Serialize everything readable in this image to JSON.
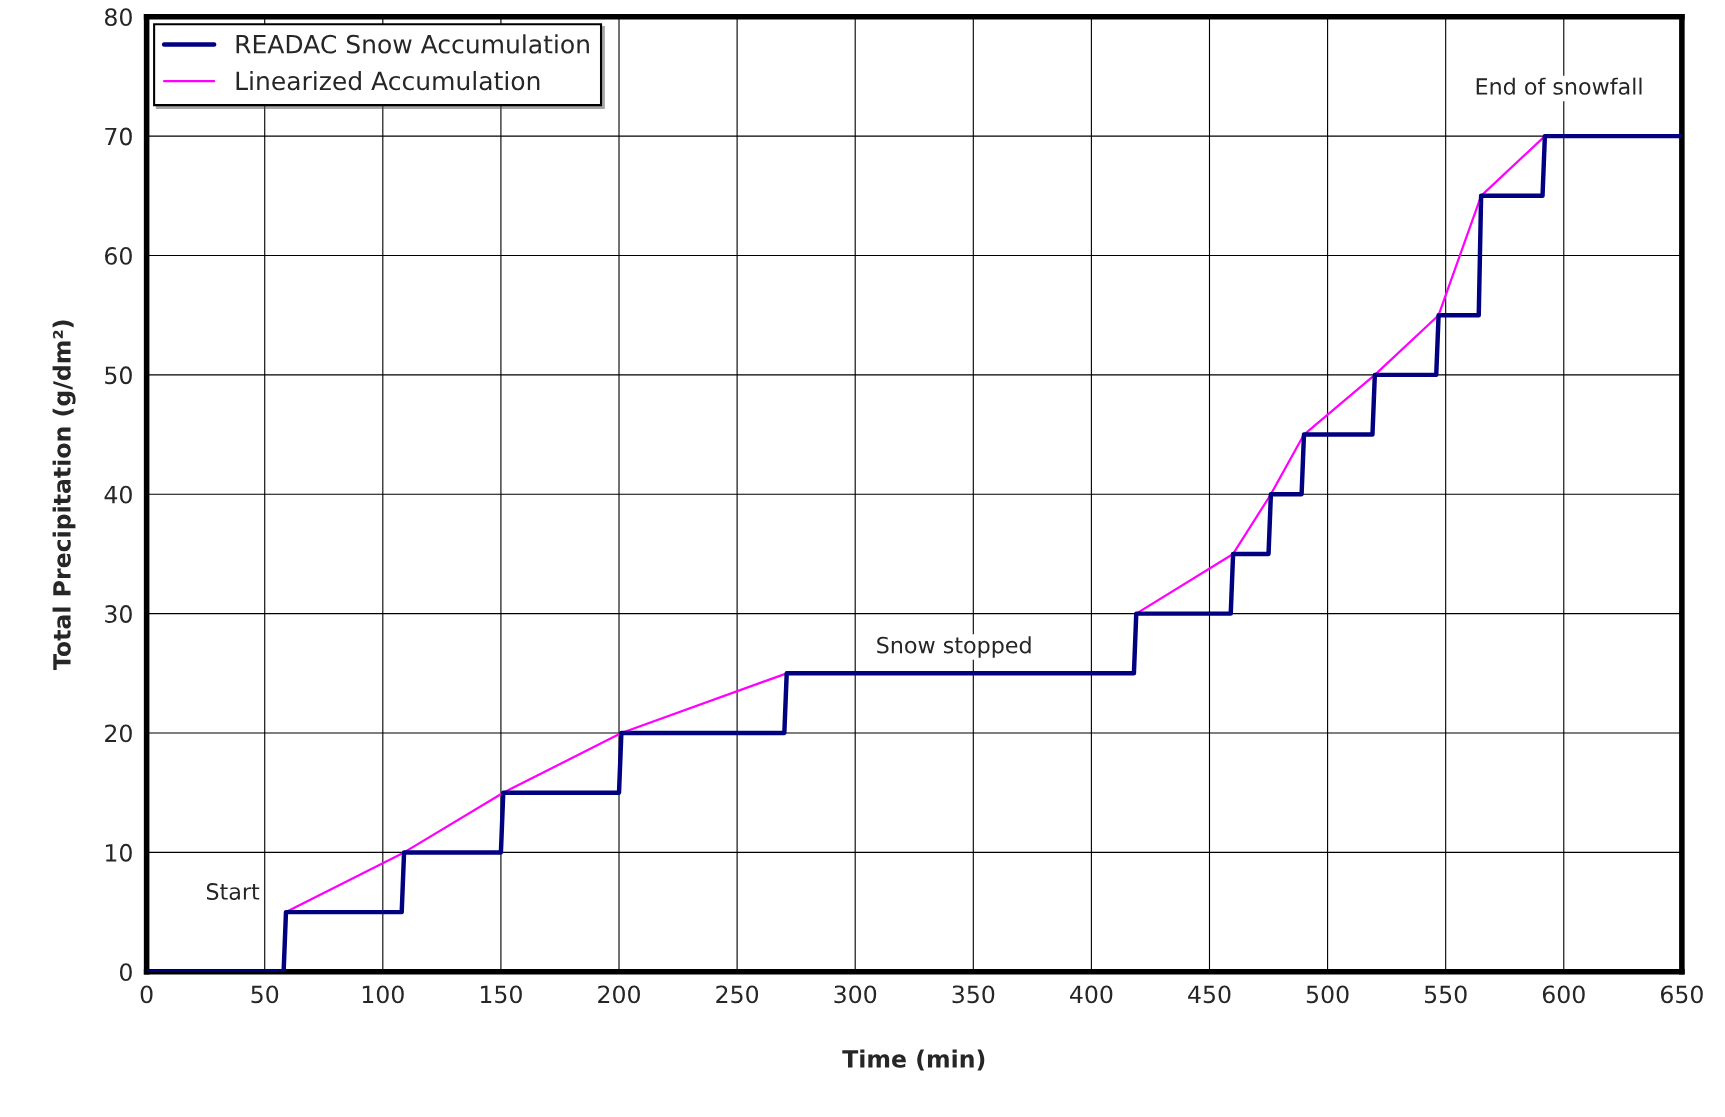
{
  "chart_data": {
    "type": "line",
    "xlabel": "Time (min)",
    "ylabel": "Total Precipitation (g/dm²)",
    "xlim": [
      0,
      650
    ],
    "xticks": [
      0,
      50,
      100,
      150,
      200,
      250,
      300,
      350,
      400,
      450,
      500,
      550,
      600,
      650
    ],
    "ylim": [
      0,
      80
    ],
    "yticks": [
      0,
      10,
      20,
      30,
      40,
      50,
      60,
      70,
      80
    ],
    "grid": true,
    "legend": "top left",
    "series": [
      {
        "name": "READAC Snow Accumulation",
        "color": "#000080",
        "x": [
          0,
          58,
          59,
          108,
          109,
          150,
          151,
          200,
          201,
          270,
          271,
          418,
          419,
          459,
          460,
          475,
          476,
          489,
          490,
          519,
          520,
          546,
          547,
          564,
          565,
          591,
          592,
          650
        ],
        "values": [
          0,
          0,
          5,
          5,
          10,
          10,
          15,
          15,
          20,
          20,
          25,
          25,
          30,
          30,
          35,
          35,
          40,
          40,
          45,
          45,
          50,
          50,
          55,
          55,
          65,
          65,
          70,
          70
        ]
      },
      {
        "name": "Linearized Accumulation",
        "color": "#ff00ff",
        "x": [
          59,
          109,
          151,
          201,
          271,
          345,
          419,
          460,
          476,
          490,
          520,
          547,
          565,
          592
        ],
        "values": [
          5,
          10,
          15,
          20,
          25,
          null,
          30,
          35,
          40,
          45,
          50,
          55,
          65,
          70
        ]
      }
    ],
    "annotations": [
      "Start",
      "Snow stopped",
      "End of snowfall"
    ]
  }
}
